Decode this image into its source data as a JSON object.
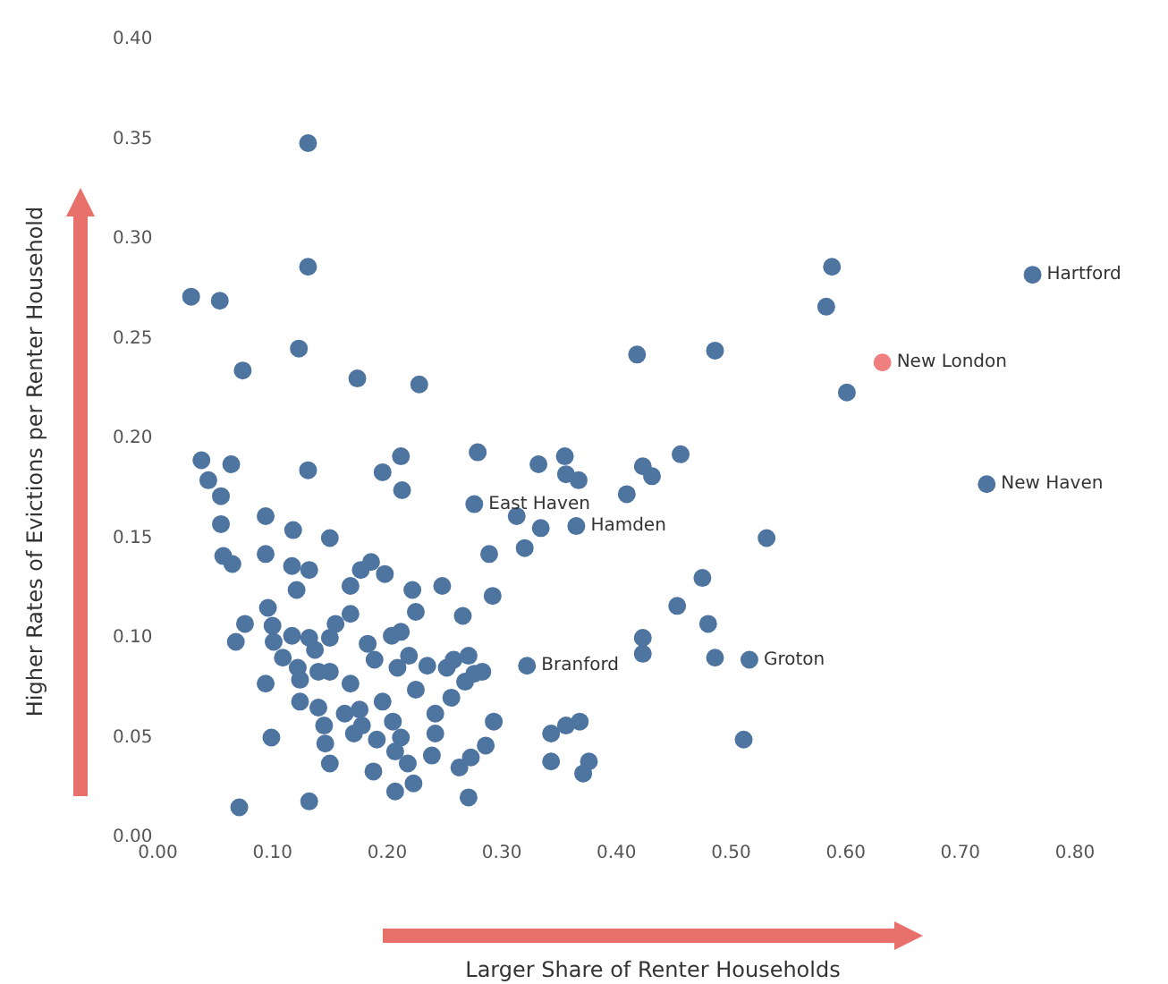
{
  "chart_data": {
    "type": "scatter",
    "xlabel": "Larger Share of Renter Households",
    "ylabel": "Higher Rates of Evictions per Renter Household",
    "xlim": [
      0,
      0.8
    ],
    "xticks": [
      {
        "value": 0,
        "label": "0.00"
      },
      {
        "value": 0.1,
        "label": "0.10"
      },
      {
        "value": 0.2,
        "label": "0.20"
      },
      {
        "value": 0.3,
        "label": "0.30"
      },
      {
        "value": 0.4,
        "label": "0.40"
      },
      {
        "value": 0.5,
        "label": "0.50"
      },
      {
        "value": 0.6,
        "label": "0.60"
      },
      {
        "value": 0.7,
        "label": "0.70"
      },
      {
        "value": 0.8,
        "label": "0.80"
      }
    ],
    "ylim": [
      0,
      0.4
    ],
    "yticks": [
      {
        "value": 0,
        "label": "0.00"
      },
      {
        "value": 0.05,
        "label": "0.05"
      },
      {
        "value": 0.1,
        "label": "0.10"
      },
      {
        "value": 0.15,
        "label": "0.15"
      },
      {
        "value": 0.2,
        "label": "0.20"
      },
      {
        "value": 0.25,
        "label": "0.25"
      },
      {
        "value": 0.3,
        "label": "0.30"
      },
      {
        "value": 0.35,
        "label": "0.35"
      },
      {
        "value": 0.4,
        "label": "0.40"
      }
    ],
    "grid": false,
    "legend": false,
    "marker": "circle",
    "series": [
      {
        "color": "#4e74a0",
        "x": [
          0.131,
          0.131,
          0.029,
          0.054,
          0.074,
          0.123,
          0.174,
          0.228,
          0.038,
          0.064,
          0.044,
          0.055,
          0.131,
          0.196,
          0.212,
          0.213,
          0.279,
          0.332,
          0.355,
          0.356,
          0.367,
          0.276,
          0.055,
          0.057,
          0.065,
          0.094,
          0.094,
          0.118,
          0.15,
          0.117,
          0.132,
          0.121,
          0.096,
          0.076,
          0.068,
          0.1,
          0.101,
          0.109,
          0.094,
          0.099,
          0.071,
          0.132,
          0.117,
          0.132,
          0.137,
          0.15,
          0.155,
          0.168,
          0.168,
          0.177,
          0.186,
          0.198,
          0.222,
          0.225,
          0.248,
          0.266,
          0.289,
          0.292,
          0.313,
          0.334,
          0.32,
          0.365,
          0.122,
          0.124,
          0.14,
          0.15,
          0.168,
          0.124,
          0.14,
          0.145,
          0.146,
          0.15,
          0.163,
          0.176,
          0.171,
          0.178,
          0.183,
          0.189,
          0.196,
          0.191,
          0.188,
          0.204,
          0.212,
          0.209,
          0.219,
          0.225,
          0.205,
          0.212,
          0.207,
          0.218,
          0.207,
          0.223,
          0.235,
          0.242,
          0.242,
          0.239,
          0.252,
          0.258,
          0.271,
          0.268,
          0.276,
          0.283,
          0.256,
          0.293,
          0.286,
          0.273,
          0.263,
          0.271,
          0.322,
          0.343,
          0.356,
          0.368,
          0.343,
          0.376,
          0.371,
          0.763,
          0.588,
          0.583,
          0.601,
          0.418,
          0.486,
          0.723,
          0.423,
          0.431,
          0.456,
          0.409,
          0.531,
          0.475,
          0.453,
          0.48,
          0.423,
          0.423,
          0.486,
          0.516,
          0.511
        ],
        "values": [
          0.348,
          0.286,
          0.271,
          0.269,
          0.234,
          0.245,
          0.23,
          0.227,
          0.189,
          0.187,
          0.179,
          0.171,
          0.184,
          0.183,
          0.191,
          0.174,
          0.193,
          0.187,
          0.191,
          0.182,
          0.179,
          0.167,
          0.157,
          0.141,
          0.137,
          0.142,
          0.161,
          0.154,
          0.15,
          0.136,
          0.134,
          0.124,
          0.115,
          0.107,
          0.098,
          0.106,
          0.098,
          0.09,
          0.077,
          0.05,
          0.015,
          0.018,
          0.101,
          0.1,
          0.094,
          0.1,
          0.107,
          0.112,
          0.126,
          0.134,
          0.138,
          0.132,
          0.124,
          0.113,
          0.126,
          0.111,
          0.142,
          0.121,
          0.161,
          0.155,
          0.145,
          0.156,
          0.085,
          0.079,
          0.083,
          0.083,
          0.077,
          0.068,
          0.065,
          0.056,
          0.047,
          0.037,
          0.062,
          0.064,
          0.052,
          0.056,
          0.097,
          0.089,
          0.068,
          0.049,
          0.033,
          0.101,
          0.103,
          0.085,
          0.091,
          0.074,
          0.058,
          0.05,
          0.043,
          0.037,
          0.023,
          0.027,
          0.086,
          0.062,
          0.052,
          0.041,
          0.085,
          0.089,
          0.091,
          0.078,
          0.082,
          0.083,
          0.07,
          0.058,
          0.046,
          0.04,
          0.035,
          0.02,
          0.086,
          0.052,
          0.056,
          0.058,
          0.038,
          0.038,
          0.032,
          0.282,
          0.286,
          0.266,
          0.223,
          0.242,
          0.244,
          0.177,
          0.186,
          0.181,
          0.192,
          0.172,
          0.15,
          0.13,
          0.116,
          0.107,
          0.1,
          0.092,
          0.09,
          0.089,
          0.049
        ]
      },
      {
        "color": "#f08080",
        "x": [
          0.632
        ],
        "values": [
          0.238
        ]
      }
    ],
    "annotations": [
      {
        "text": "Hartford",
        "x": 0.763,
        "y": 0.282
      },
      {
        "text": "New London",
        "x": 0.632,
        "y": 0.238
      },
      {
        "text": "New Haven",
        "x": 0.723,
        "y": 0.177
      },
      {
        "text": "East Haven",
        "x": 0.276,
        "y": 0.167
      },
      {
        "text": "Hamden",
        "x": 0.365,
        "y": 0.156
      },
      {
        "text": "Branford",
        "x": 0.322,
        "y": 0.086
      },
      {
        "text": "Groton",
        "x": 0.516,
        "y": 0.089
      }
    ]
  }
}
